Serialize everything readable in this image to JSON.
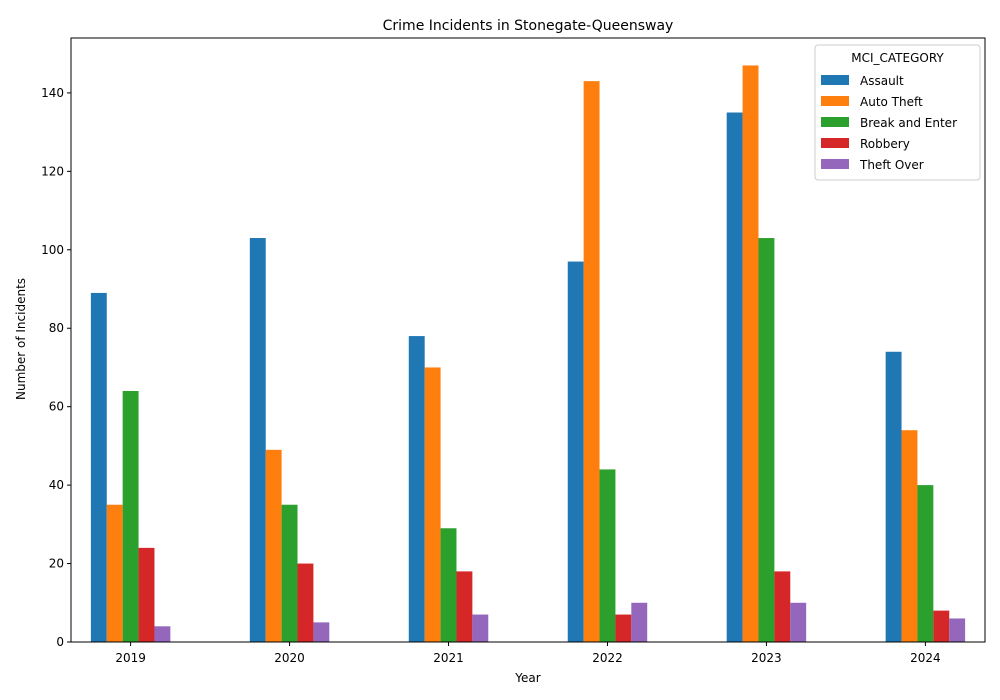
{
  "chart_data": {
    "type": "bar",
    "title": "Crime Incidents in Stonegate-Queensway",
    "xlabel": "Year",
    "ylabel": "Number of Incidents",
    "categories": [
      "2019",
      "2020",
      "2021",
      "2022",
      "2023",
      "2024"
    ],
    "ylim": [
      0,
      154
    ],
    "yticks": [
      0,
      20,
      40,
      60,
      80,
      100,
      120,
      140
    ],
    "grid": false,
    "legend": {
      "title": "MCI_CATEGORY",
      "placement": "top-right"
    },
    "series": [
      {
        "name": "Assault",
        "color": "#1f77b4",
        "values": [
          89,
          103,
          78,
          97,
          135,
          74
        ]
      },
      {
        "name": "Auto Theft",
        "color": "#ff7f0e",
        "values": [
          35,
          49,
          70,
          143,
          147,
          54
        ]
      },
      {
        "name": "Break and Enter",
        "color": "#2ca02c",
        "values": [
          64,
          35,
          29,
          44,
          103,
          40
        ]
      },
      {
        "name": "Robbery",
        "color": "#d62728",
        "values": [
          24,
          20,
          18,
          7,
          18,
          8
        ]
      },
      {
        "name": "Theft Over",
        "color": "#9467bd",
        "values": [
          4,
          5,
          7,
          10,
          10,
          6
        ]
      }
    ]
  }
}
